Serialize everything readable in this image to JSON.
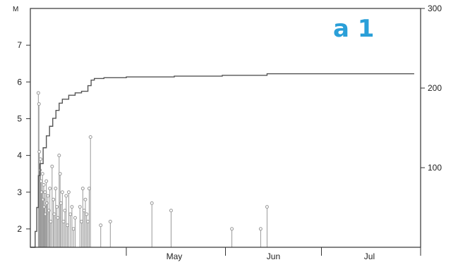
{
  "chart_data": {
    "type": "line",
    "panel_label": "a 1",
    "left_axis": {
      "label": "M",
      "ylim": [
        1.5,
        8.0
      ],
      "ticks": [
        2,
        3,
        4,
        5,
        6,
        7
      ],
      "tick_labels": [
        "2",
        "3",
        "4",
        "5",
        "6",
        "7"
      ]
    },
    "right_axis": {
      "label": "",
      "ylim": [
        0,
        300
      ],
      "ticks": [
        100,
        200,
        300
      ],
      "tick_labels": [
        "100",
        "200",
        "300"
      ]
    },
    "x_axis": {
      "label": "",
      "month_labels": [
        {
          "day": 45,
          "label": "May"
        },
        {
          "day": 76,
          "label": "Jun"
        },
        {
          "day": 106,
          "label": "Jul"
        }
      ],
      "boundaries": [
        30,
        61,
        91,
        122
      ],
      "xlim": [
        0,
        122
      ]
    },
    "series": [
      {
        "kind": "stem",
        "axis": "left",
        "color": "#999999",
        "points": [
          {
            "x": 2.5,
            "y": 5.7
          },
          {
            "x": 2.7,
            "y": 5.4
          },
          {
            "x": 2.8,
            "y": 4.1
          },
          {
            "x": 3.0,
            "y": 3.6
          },
          {
            "x": 3.2,
            "y": 3.9
          },
          {
            "x": 3.4,
            "y": 3.3
          },
          {
            "x": 3.6,
            "y": 3.0
          },
          {
            "x": 3.8,
            "y": 3.5
          },
          {
            "x": 4.0,
            "y": 2.8
          },
          {
            "x": 4.2,
            "y": 3.2
          },
          {
            "x": 4.4,
            "y": 2.6
          },
          {
            "x": 4.6,
            "y": 3.0
          },
          {
            "x": 4.8,
            "y": 2.4
          },
          {
            "x": 5.0,
            "y": 3.3
          },
          {
            "x": 5.2,
            "y": 2.7
          },
          {
            "x": 5.5,
            "y": 2.9
          },
          {
            "x": 5.8,
            "y": 2.5
          },
          {
            "x": 6.1,
            "y": 3.1
          },
          {
            "x": 6.4,
            "y": 2.2
          },
          {
            "x": 6.8,
            "y": 3.7
          },
          {
            "x": 7.2,
            "y": 2.8
          },
          {
            "x": 7.5,
            "y": 2.4
          },
          {
            "x": 7.9,
            "y": 3.1
          },
          {
            "x": 8.3,
            "y": 2.6
          },
          {
            "x": 8.6,
            "y": 2.3
          },
          {
            "x": 9.0,
            "y": 4.0
          },
          {
            "x": 9.3,
            "y": 3.5
          },
          {
            "x": 9.6,
            "y": 2.7
          },
          {
            "x": 10.0,
            "y": 3.0
          },
          {
            "x": 10.4,
            "y": 2.2
          },
          {
            "x": 10.8,
            "y": 2.5
          },
          {
            "x": 11.2,
            "y": 2.9
          },
          {
            "x": 11.6,
            "y": 2.1
          },
          {
            "x": 12.0,
            "y": 3.0
          },
          {
            "x": 12.5,
            "y": 2.4
          },
          {
            "x": 13.0,
            "y": 2.6
          },
          {
            "x": 13.5,
            "y": 2.0
          },
          {
            "x": 14.0,
            "y": 2.3
          },
          {
            "x": 15.5,
            "y": 2.6
          },
          {
            "x": 16.0,
            "y": 2.2
          },
          {
            "x": 16.4,
            "y": 3.1
          },
          {
            "x": 16.8,
            "y": 2.5
          },
          {
            "x": 17.2,
            "y": 2.8
          },
          {
            "x": 17.6,
            "y": 2.4
          },
          {
            "x": 18.0,
            "y": 2.2
          },
          {
            "x": 18.4,
            "y": 3.1
          },
          {
            "x": 18.8,
            "y": 4.5
          },
          {
            "x": 22.0,
            "y": 2.1
          },
          {
            "x": 25.0,
            "y": 2.2
          },
          {
            "x": 38.0,
            "y": 2.7
          },
          {
            "x": 44.0,
            "y": 2.5
          },
          {
            "x": 63.0,
            "y": 2.0
          },
          {
            "x": 72.0,
            "y": 2.0
          },
          {
            "x": 74.0,
            "y": 2.6
          }
        ]
      },
      {
        "kind": "cumulative_step",
        "axis": "right",
        "color": "#555555",
        "points": [
          {
            "x": 0.0,
            "y": 0
          },
          {
            "x": 1.0,
            "y": 0
          },
          {
            "x": 1.5,
            "y": 20
          },
          {
            "x": 2.0,
            "y": 50
          },
          {
            "x": 2.5,
            "y": 90
          },
          {
            "x": 3.0,
            "y": 105
          },
          {
            "x": 4.0,
            "y": 125
          },
          {
            "x": 5.0,
            "y": 140
          },
          {
            "x": 6.0,
            "y": 152
          },
          {
            "x": 7.0,
            "y": 162
          },
          {
            "x": 8.0,
            "y": 172
          },
          {
            "x": 9.0,
            "y": 181
          },
          {
            "x": 10.0,
            "y": 186
          },
          {
            "x": 12.0,
            "y": 191
          },
          {
            "x": 14.0,
            "y": 194
          },
          {
            "x": 16.0,
            "y": 196
          },
          {
            "x": 18.0,
            "y": 203
          },
          {
            "x": 19.0,
            "y": 210
          },
          {
            "x": 20.0,
            "y": 212
          },
          {
            "x": 23.0,
            "y": 213
          },
          {
            "x": 30.0,
            "y": 214
          },
          {
            "x": 45.0,
            "y": 215
          },
          {
            "x": 60.0,
            "y": 216
          },
          {
            "x": 74.0,
            "y": 218
          },
          {
            "x": 90.0,
            "y": 218
          },
          {
            "x": 120.0,
            "y": 218
          }
        ]
      }
    ]
  }
}
